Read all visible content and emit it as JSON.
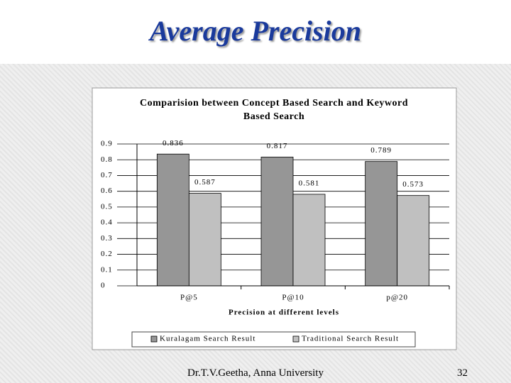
{
  "slide_title": "Average Precision",
  "footer": "Dr.T.V.Geetha, Anna University",
  "page_number": "32",
  "chart_data": {
    "type": "bar",
    "title": "Comparision between Concept Based Search and Keyword Based Search",
    "x_label": "Precision at different levels",
    "categories": [
      "P@5",
      "P@10",
      "p@20"
    ],
    "series": [
      {
        "name": "Kuralagam Search Result",
        "color": "#969696",
        "values": [
          0.836,
          0.817,
          0.789
        ]
      },
      {
        "name": "Traditional Search Result",
        "color": "#c0c0c0",
        "values": [
          0.587,
          0.581,
          0.573
        ]
      }
    ],
    "ylim": [
      0,
      0.9
    ],
    "yticks": [
      0,
      0.1,
      0.2,
      0.3,
      0.4,
      0.5,
      0.6,
      0.7,
      0.8,
      0.9
    ],
    "grid": true,
    "legend": "bottom"
  }
}
